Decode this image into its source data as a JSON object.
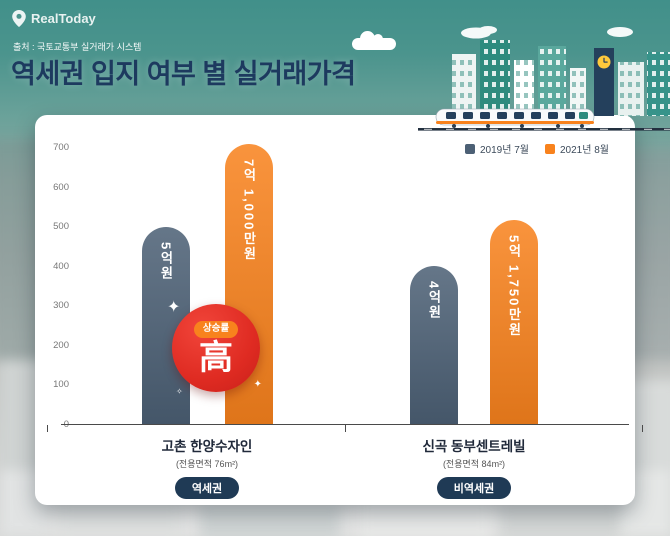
{
  "brand": {
    "name": "RealToday"
  },
  "header": {
    "source": "출처 : 국토교통부 실거래가 시스템",
    "title": "역세권 입지 여부 별 실거래가격"
  },
  "rise_badge": {
    "label": "상승률",
    "character": "高"
  },
  "colors": {
    "background_teal": "#45908a",
    "title_navy": "#1d3a5f",
    "series_2019": "#4c6075",
    "series_2021": "#f8821d",
    "badge_red": "#df2b22",
    "tag_navy": "#1f3a55"
  },
  "chart_data": {
    "type": "bar",
    "title": "역세권 입지 여부 별 실거래가격",
    "ylim": [
      0,
      700
    ],
    "yticks": [
      0,
      100,
      200,
      300,
      400,
      500,
      600,
      700
    ],
    "grid": false,
    "legend_position": "top-right",
    "categories": [
      {
        "name": "고촌 한양수자인",
        "area": "(전용면적 76m²)",
        "tag": "역세권"
      },
      {
        "name": "신곡 동부센트레빌",
        "area": "(전용면적 84m²)",
        "tag": "비역세권"
      }
    ],
    "series": [
      {
        "name": "2019년 7월",
        "color": "#4c6075",
        "values": [
          500,
          400
        ],
        "value_labels": [
          "5억원",
          "4억원"
        ]
      },
      {
        "name": "2021년 8월",
        "color": "#f8821d",
        "values": [
          710,
          517.5
        ],
        "value_labels": [
          "7억 1,000만원",
          "5억 1,750만원"
        ]
      }
    ]
  }
}
